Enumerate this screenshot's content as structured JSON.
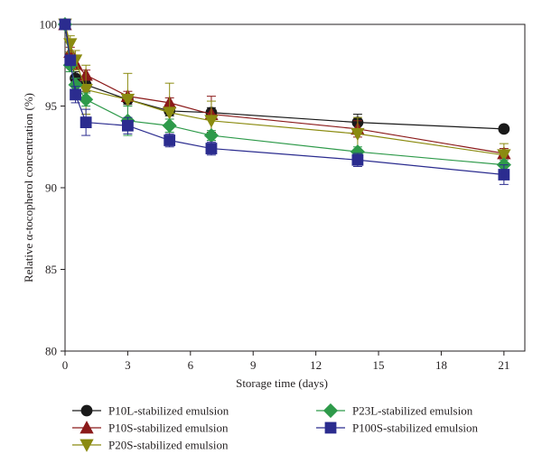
{
  "chart_data": {
    "type": "line",
    "title": "",
    "xlabel": "Storage time (days)",
    "ylabel": "Relative α-tocopherol concentration (%)",
    "xlim": [
      0,
      22
    ],
    "ylim": [
      80,
      100
    ],
    "xticks": [
      0,
      3,
      6,
      9,
      12,
      15,
      18,
      21
    ],
    "yticks": [
      80,
      85,
      90,
      95,
      100
    ],
    "grid": false,
    "legend_position": "bottom",
    "series": [
      {
        "name": "P10L-stabilized emulsion",
        "color": "#1a1a1a",
        "marker": "circle",
        "x": [
          0,
          0.25,
          0.5,
          1,
          3,
          5,
          7,
          14,
          21
        ],
        "y": [
          100,
          98.0,
          96.7,
          96.3,
          95.4,
          94.7,
          94.6,
          94.0,
          93.6
        ],
        "err": [
          0,
          0.3,
          0.4,
          0.4,
          0.3,
          0.3,
          0.3,
          0.5,
          0.2
        ]
      },
      {
        "name": "P10S-stabilized emulsion",
        "color": "#8b1a1a",
        "marker": "triangle-up",
        "x": [
          0,
          0.25,
          0.5,
          1,
          3,
          5,
          7,
          14,
          21
        ],
        "y": [
          100,
          98.3,
          97.6,
          96.9,
          95.6,
          95.2,
          94.5,
          93.6,
          92.1
        ],
        "err": [
          0,
          0.3,
          0.3,
          0.3,
          0.3,
          0.3,
          1.1,
          0.5,
          0.3
        ]
      },
      {
        "name": "P20S-stabilized emulsion",
        "color": "#8b8b10",
        "marker": "triangle-down",
        "x": [
          0,
          0.25,
          0.5,
          1,
          3,
          5,
          7,
          14,
          21
        ],
        "y": [
          100,
          98.8,
          97.8,
          96.0,
          95.4,
          94.6,
          94.1,
          93.3,
          92.0
        ],
        "err": [
          0,
          0.5,
          0.6,
          1.5,
          1.6,
          1.8,
          1.2,
          1.0,
          0.7
        ]
      },
      {
        "name": "P23L-stabilized emulsion",
        "color": "#2e9a4a",
        "marker": "diamond",
        "x": [
          0,
          0.25,
          0.5,
          1,
          3,
          5,
          7,
          14,
          21
        ],
        "y": [
          100,
          97.5,
          96.3,
          95.4,
          94.1,
          93.8,
          93.2,
          92.2,
          91.4
        ],
        "err": [
          0,
          0.4,
          0.4,
          0.4,
          0.9,
          0.4,
          0.3,
          0.3,
          0.3
        ]
      },
      {
        "name": "P100S-stabilized emulsion",
        "color": "#2b2c8f",
        "marker": "square",
        "x": [
          0,
          0.25,
          0.5,
          1,
          3,
          5,
          7,
          14,
          21
        ],
        "y": [
          100,
          97.8,
          95.7,
          94.0,
          93.8,
          92.9,
          92.4,
          91.7,
          90.8
        ],
        "err": [
          0,
          0.3,
          0.5,
          0.8,
          0.5,
          0.4,
          0.4,
          0.4,
          0.6
        ]
      }
    ]
  }
}
